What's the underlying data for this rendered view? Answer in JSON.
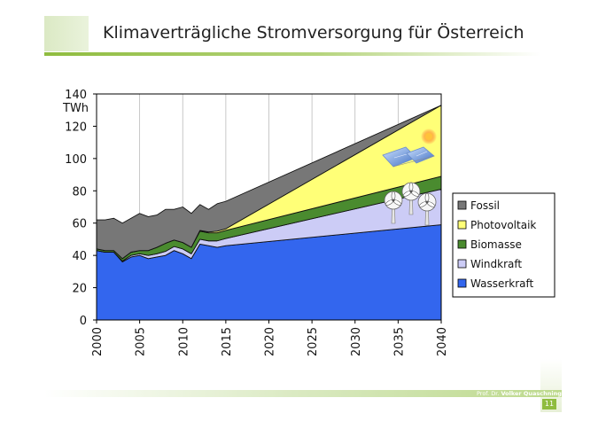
{
  "slide": {
    "title": "Klimaverträgliche Stromversorgung für Österreich",
    "author_prefix": "Prof. Dr.",
    "author_name": "Volker Quaschning",
    "page_number": "11"
  },
  "chart_data": {
    "type": "area",
    "stacked": true,
    "ylabel": "TWh",
    "ylim": [
      0,
      140
    ],
    "y_ticks": [
      "0",
      "20",
      "40",
      "60",
      "80",
      "100",
      "120",
      "140"
    ],
    "xlim": [
      2000,
      2040
    ],
    "x_ticks": [
      "2000",
      "2005",
      "2010",
      "2015",
      "2020",
      "2025",
      "2030",
      "2035",
      "2040"
    ],
    "legend_position": "right",
    "x": [
      2000,
      2001,
      2002,
      2003,
      2004,
      2005,
      2006,
      2007,
      2008,
      2009,
      2010,
      2011,
      2012,
      2013,
      2014,
      2015,
      2040
    ],
    "series": [
      {
        "name": "Wasserkraft",
        "color": "#3366ee",
        "values": [
          43,
          42,
          42,
          36,
          39,
          40,
          38,
          39,
          40,
          43,
          41,
          38,
          47,
          46,
          45,
          46,
          59
        ]
      },
      {
        "name": "Windkraft",
        "color": "#ccccf6",
        "values": [
          0,
          0,
          0,
          0.5,
          1,
          1,
          2,
          2,
          2.5,
          2.5,
          3,
          3,
          3,
          3,
          4,
          4.5,
          22
        ]
      },
      {
        "name": "Biomasse",
        "color": "#4a8b2f",
        "values": [
          1,
          1,
          1,
          1.5,
          2,
          2,
          3,
          4,
          5,
          4,
          4,
          4,
          5,
          5,
          5,
          5,
          8
        ]
      },
      {
        "name": "Photovoltaik",
        "color": "#ffff77",
        "values": [
          0,
          0,
          0,
          0,
          0,
          0,
          0,
          0,
          0,
          0,
          0,
          0,
          0.5,
          0.5,
          1,
          1,
          44
        ]
      },
      {
        "name": "Fossil",
        "color": "#777777",
        "values": [
          18,
          19,
          20,
          22,
          21,
          23,
          21,
          20,
          21,
          19,
          22,
          21,
          16,
          14,
          17,
          17,
          0
        ]
      }
    ],
    "legend_order": [
      "Fossil",
      "Photovoltaik",
      "Biomasse",
      "Windkraft",
      "Wasserkraft"
    ]
  }
}
